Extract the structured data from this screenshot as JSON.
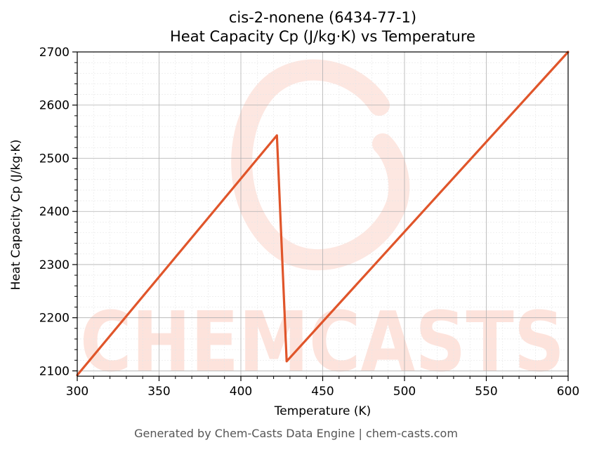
{
  "chart_data": {
    "type": "line",
    "title_line1": "cis-2-nonene (6434-77-1)",
    "title_line2": "Heat Capacity Cp (J/kg·K) vs Temperature",
    "xlabel": "Temperature (K)",
    "ylabel": "Heat Capacity Cp (J/kg·K)",
    "xlim": [
      300,
      600
    ],
    "ylim": [
      2090,
      2700
    ],
    "x_ticks": [
      300,
      350,
      400,
      450,
      500,
      550,
      600
    ],
    "y_ticks": [
      2100,
      2200,
      2300,
      2400,
      2500,
      2600,
      2700
    ],
    "grid": true,
    "legend": "none",
    "series": [
      {
        "color": "#e0552a",
        "x": [
          300,
          422,
          428,
          600
        ],
        "y": [
          2092,
          2543,
          2118,
          2700
        ]
      }
    ]
  },
  "footer": "Generated by Chem-Casts Data Engine | chem-casts.com",
  "watermark": {
    "text": "CHEMCASTS",
    "color": "#fde3dc"
  }
}
